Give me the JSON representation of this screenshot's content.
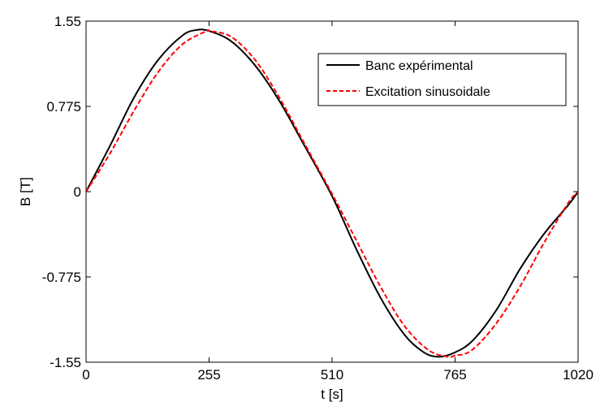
{
  "chart_data": {
    "type": "line",
    "title": "",
    "xlabel": "t [s]",
    "ylabel": "B [T]",
    "xlim": [
      0,
      1020
    ],
    "ylim": [
      -1.55,
      1.55
    ],
    "x_ticks": [
      0,
      255,
      510,
      765,
      1020
    ],
    "x_tick_labels": [
      "0",
      "255",
      "510",
      "765",
      "1020"
    ],
    "y_ticks": [
      1.55,
      0.775,
      0,
      -0.775,
      -1.55
    ],
    "y_tick_labels": [
      "1.55",
      "0.775",
      "0",
      "-0.775",
      "-1.55"
    ],
    "grid": false,
    "legend_position": "top-right",
    "series": [
      {
        "name": "Banc expérimental",
        "color": "#000000",
        "style": "solid",
        "x": [
          0,
          50,
          100,
          150,
          200,
          230,
          255,
          300,
          350,
          400,
          450,
          510,
          560,
          610,
          660,
          700,
          730,
          760,
          800,
          850,
          900,
          950,
          1000,
          1020
        ],
        "y": [
          0,
          0.42,
          0.86,
          1.2,
          1.42,
          1.47,
          1.46,
          1.37,
          1.15,
          0.83,
          0.44,
          -0.04,
          -0.52,
          -0.96,
          -1.3,
          -1.46,
          -1.5,
          -1.47,
          -1.36,
          -1.08,
          -0.7,
          -0.38,
          -0.12,
          0
        ]
      },
      {
        "name": "Excitation sinusoidale",
        "color": "#ff0000",
        "style": "dashed",
        "x": [
          0,
          50,
          100,
          150,
          200,
          250,
          255,
          300,
          350,
          400,
          450,
          510,
          560,
          610,
          660,
          710,
          750,
          765,
          800,
          850,
          900,
          950,
          1000,
          1020
        ],
        "y": [
          0,
          0.35,
          0.74,
          1.09,
          1.34,
          1.46,
          1.46,
          1.41,
          1.2,
          0.86,
          0.46,
          -0.02,
          -0.44,
          -0.86,
          -1.22,
          -1.44,
          -1.5,
          -1.49,
          -1.44,
          -1.2,
          -0.86,
          -0.46,
          -0.1,
          0
        ]
      }
    ]
  }
}
